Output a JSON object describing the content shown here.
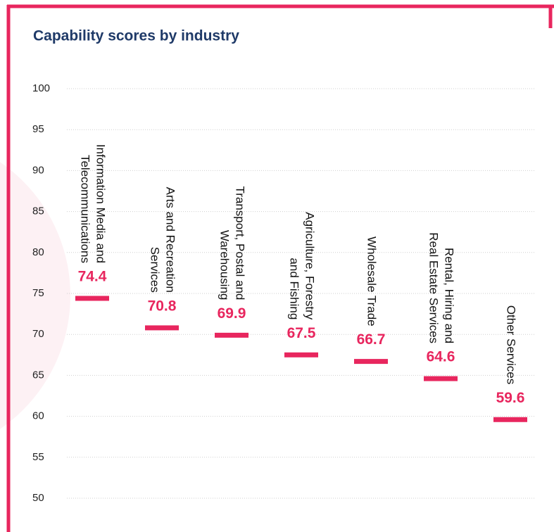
{
  "chart_data": {
    "type": "dash",
    "title": "Capability scores by industry",
    "categories": [
      [
        "Information Media and",
        "Telecommunications"
      ],
      [
        "Arts and Recreation",
        "Services"
      ],
      [
        "Transport, Postal and",
        "Warehousing"
      ],
      [
        "Agriculture, Forestry",
        "and Fishing"
      ],
      [
        "Wholesale Trade"
      ],
      [
        "Rental, Hiring and",
        "Real Estate Services"
      ],
      [
        "Other Services"
      ]
    ],
    "values": [
      74.4,
      70.8,
      69.9,
      67.5,
      66.7,
      64.6,
      59.6
    ],
    "color": "#e8265e",
    "ylim": [
      50,
      100
    ],
    "yticks": [
      50,
      55,
      60,
      65,
      70,
      75,
      80,
      85,
      90,
      95,
      100
    ],
    "grid": true
  }
}
